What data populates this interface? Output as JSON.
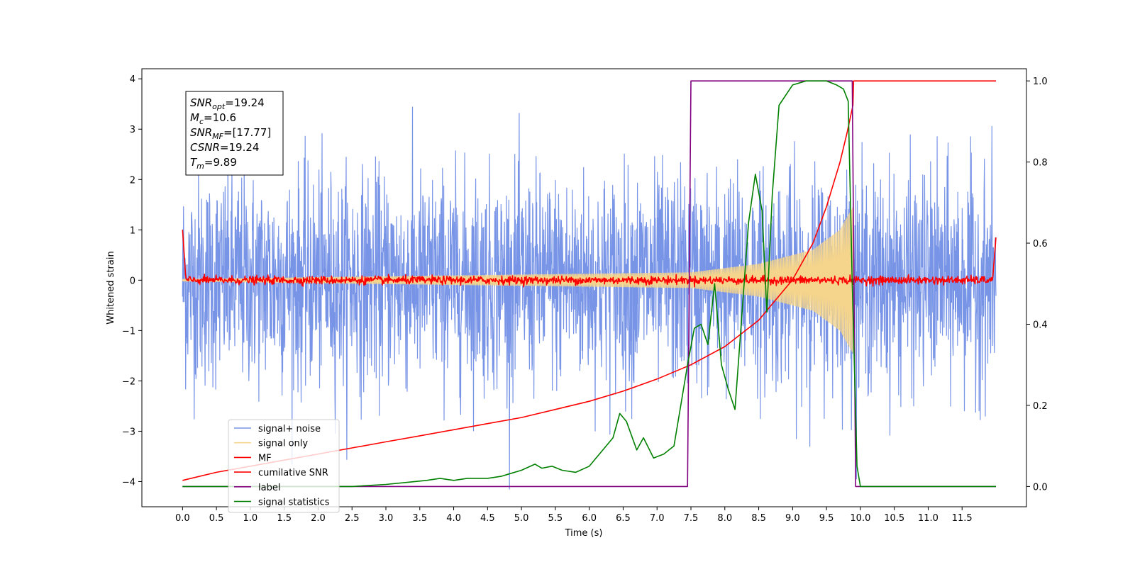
{
  "chart_data": {
    "type": "line",
    "title": "",
    "xlabel": "Time (s)",
    "ylabel": "Whitened strain",
    "ylabel_right": "",
    "xlim": [
      -0.6,
      12.45
    ],
    "ylim": [
      -4.5,
      4.2
    ],
    "ylim_right": [
      -0.05,
      1.03
    ],
    "grid": false,
    "legend_position": "lower-left",
    "x_ticks": [
      "0.0",
      "0.5",
      "1.0",
      "1.5",
      "2.0",
      "2.5",
      "3.0",
      "3.5",
      "4.0",
      "4.5",
      "5.0",
      "5.5",
      "6.0",
      "6.5",
      "7.0",
      "7.5",
      "8.0",
      "8.5",
      "9.0",
      "9.5",
      "10.0",
      "10.5",
      "11.0",
      "11.5"
    ],
    "y_ticks": [
      "−4",
      "−3",
      "−2",
      "−1",
      "0",
      "1",
      "2",
      "3",
      "4"
    ],
    "y_ticks_right": [
      "0.0",
      "0.2",
      "0.4",
      "0.6",
      "0.8",
      "1.0"
    ],
    "annotation_lines": [
      {
        "key": "SNR",
        "sub": "opt",
        "value": "=19.24"
      },
      {
        "key": "M",
        "sub": "c",
        "value": "=10.6"
      },
      {
        "key": "SNR",
        "sub": "MF",
        "value": "=[17.77]"
      },
      {
        "key": "CSNR",
        "sub": "",
        "value": "=19.24"
      },
      {
        "key": "T",
        "sub": "m",
        "value": "=9.89"
      }
    ],
    "series": [
      {
        "name": "signal+ noise",
        "color": "#7894e6",
        "axis": "left",
        "style": "noise",
        "x_range": [
          0.0,
          12.0
        ],
        "std": 1.05
      },
      {
        "name": "signal only",
        "color": "#f5d58c",
        "axis": "left",
        "style": "chirp",
        "x_range": [
          0.0,
          9.89
        ],
        "amplitude_at": [
          [
            0.0,
            0.02
          ],
          [
            7.5,
            0.15
          ],
          [
            8.5,
            0.32
          ],
          [
            9.3,
            0.6
          ],
          [
            9.7,
            1.0
          ],
          [
            9.89,
            1.45
          ]
        ]
      },
      {
        "name": "MF",
        "color": "#ff0000",
        "axis": "left",
        "style": "mf",
        "x_range": [
          0.0,
          12.0
        ]
      },
      {
        "name": "cumilative SNR",
        "color": "#ff0000",
        "axis": "right",
        "x": [
          0.0,
          0.5,
          1.0,
          1.5,
          2.0,
          2.5,
          3.0,
          3.5,
          4.0,
          4.5,
          5.0,
          5.5,
          6.0,
          6.5,
          7.0,
          7.5,
          8.0,
          8.5,
          9.0,
          9.3,
          9.5,
          9.7,
          9.8,
          9.89,
          9.9,
          12.0
        ],
        "y": [
          0.015,
          0.035,
          0.05,
          0.065,
          0.08,
          0.095,
          0.11,
          0.125,
          0.14,
          0.155,
          0.17,
          0.19,
          0.21,
          0.235,
          0.265,
          0.3,
          0.345,
          0.41,
          0.51,
          0.6,
          0.69,
          0.8,
          0.87,
          0.94,
          1.0,
          1.0
        ]
      },
      {
        "name": "label",
        "color": "#800080",
        "axis": "right",
        "x": [
          0.0,
          7.45,
          7.5,
          9.88,
          9.93,
          12.0
        ],
        "y": [
          0.0,
          0.0,
          1.0,
          1.0,
          0.0,
          0.0
        ]
      },
      {
        "name": "signal statistics",
        "color": "#008000",
        "axis": "right",
        "x": [
          0.0,
          0.5,
          1.0,
          1.5,
          2.0,
          2.5,
          3.0,
          3.3,
          3.6,
          3.8,
          4.0,
          4.2,
          4.5,
          4.7,
          4.8,
          5.0,
          5.2,
          5.3,
          5.45,
          5.6,
          5.8,
          6.0,
          6.2,
          6.35,
          6.45,
          6.55,
          6.7,
          6.8,
          6.95,
          7.1,
          7.25,
          7.35,
          7.45,
          7.55,
          7.65,
          7.75,
          7.85,
          7.95,
          8.05,
          8.15,
          8.25,
          8.35,
          8.45,
          8.55,
          8.62,
          8.7,
          8.8,
          9.0,
          9.2,
          9.5,
          9.65,
          9.75,
          9.82,
          9.88,
          9.95,
          10.0,
          12.0
        ],
        "y": [
          0.0,
          0.0,
          0.0,
          0.0,
          0.0,
          0.0,
          0.005,
          0.01,
          0.015,
          0.02,
          0.015,
          0.02,
          0.02,
          0.025,
          0.03,
          0.04,
          0.055,
          0.045,
          0.05,
          0.04,
          0.035,
          0.05,
          0.09,
          0.12,
          0.18,
          0.16,
          0.09,
          0.12,
          0.07,
          0.08,
          0.1,
          0.2,
          0.3,
          0.39,
          0.4,
          0.35,
          0.5,
          0.3,
          0.24,
          0.19,
          0.42,
          0.65,
          0.77,
          0.68,
          0.43,
          0.72,
          0.94,
          0.99,
          1.0,
          1.0,
          0.99,
          0.98,
          0.95,
          0.5,
          0.05,
          0.0,
          0.0
        ]
      }
    ]
  }
}
